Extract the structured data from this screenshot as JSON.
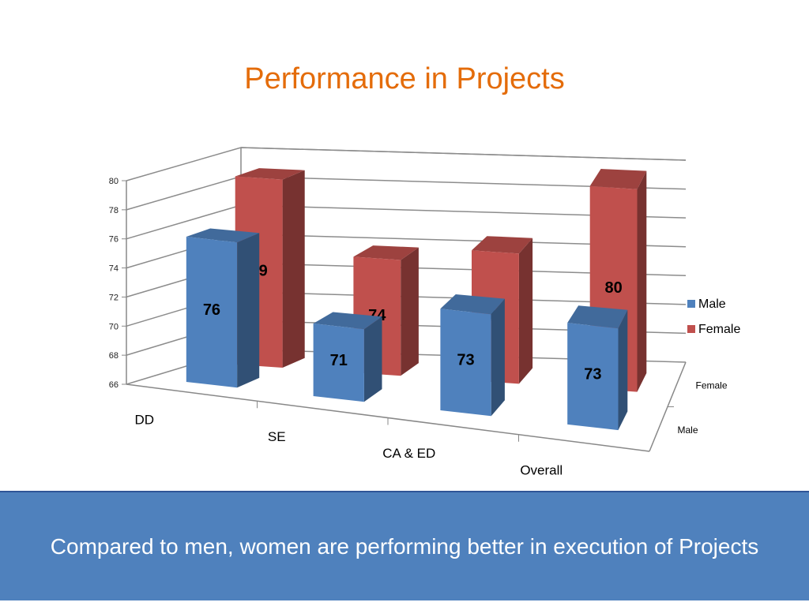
{
  "slide": {
    "title": "Performance in Projects",
    "caption": "Compared to men, women are performing better in execution of Projects"
  },
  "chart_data": {
    "type": "bar",
    "subtype": "3d-column",
    "categories": [
      "DD",
      "SE",
      "CA & ED",
      "Overall"
    ],
    "series": [
      {
        "name": "Male",
        "values": [
          76,
          71,
          73,
          73
        ],
        "color": "#4f81bd"
      },
      {
        "name": "Female",
        "values": [
          79,
          74,
          75,
          80
        ],
        "color": "#c0504d"
      }
    ],
    "ylim": [
      66,
      80
    ],
    "yticks": [
      66,
      68,
      70,
      72,
      74,
      76,
      78,
      80
    ],
    "depth_axis_labels": [
      "Male",
      "Female"
    ],
    "legend_position": "right",
    "grid": true
  }
}
